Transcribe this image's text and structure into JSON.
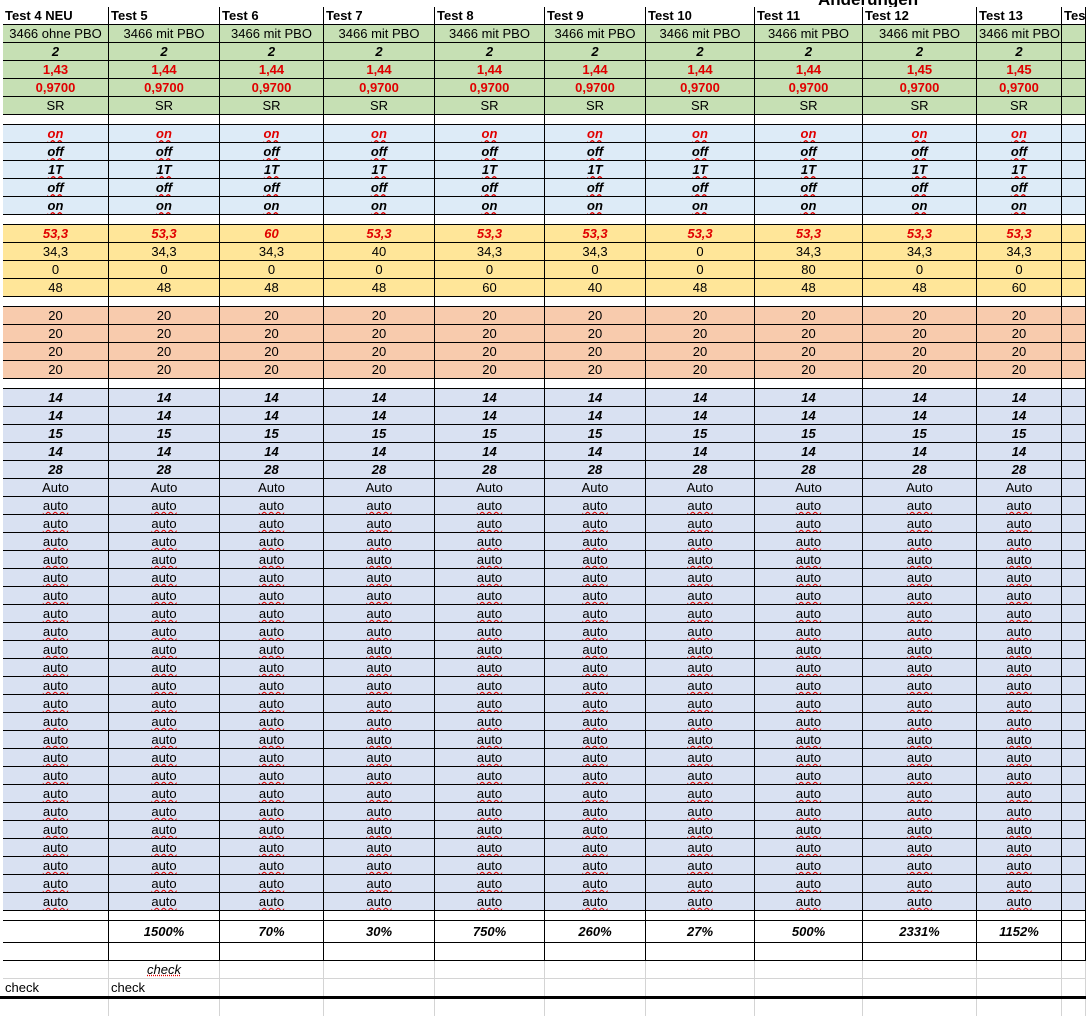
{
  "note": "Änderungen",
  "columns": [
    "Test 4 NEU",
    "Test 5",
    "Test 6",
    "Test 7",
    "Test 8",
    "Test 9",
    "Test 10",
    "Test 11",
    "Test 12",
    "Test 13",
    "Tes"
  ],
  "sections": [
    {
      "rows": [
        [
          "3466 ohne PBO",
          "3466 mit PBO",
          "3466 mit PBO",
          "3466 mit PBO",
          "3466 mit PBO",
          "3466 mit PBO",
          "3466 mit PBO",
          "3466 mit PBO",
          "3466 mit PBO",
          "3466 mit PBO"
        ],
        [
          "2",
          "2",
          "2",
          "2",
          "2",
          "2",
          "2",
          "2",
          "2",
          "2"
        ],
        [
          "1,43",
          "1,44",
          "1,44",
          "1,44",
          "1,44",
          "1,44",
          "1,44",
          "1,44",
          "1,45",
          "1,45"
        ],
        [
          "0,9700",
          "0,9700",
          "0,9700",
          "0,9700",
          "0,9700",
          "0,9700",
          "0,9700",
          "0,9700",
          "0,9700",
          "0,9700"
        ],
        [
          "SR",
          "SR",
          "SR",
          "SR",
          "SR",
          "SR",
          "SR",
          "SR",
          "SR",
          "SR"
        ]
      ]
    },
    {
      "rows": [
        [
          "on",
          "on",
          "on",
          "on",
          "on",
          "on",
          "on",
          "on",
          "on",
          "on"
        ],
        [
          "off",
          "off",
          "off",
          "off",
          "off",
          "off",
          "off",
          "off",
          "off",
          "off"
        ],
        [
          "1T",
          "1T",
          "1T",
          "1T",
          "1T",
          "1T",
          "1T",
          "1T",
          "1T",
          "1T"
        ],
        [
          "off",
          "off",
          "off",
          "off",
          "off",
          "off",
          "off",
          "off",
          "off",
          "off"
        ],
        [
          "on",
          "on",
          "on",
          "on",
          "on",
          "on",
          "on",
          "on",
          "on",
          "on"
        ]
      ]
    },
    {
      "rows": [
        [
          "53,3",
          "53,3",
          "60",
          "53,3",
          "53,3",
          "53,3",
          "53,3",
          "53,3",
          "53,3",
          "53,3"
        ],
        [
          "34,3",
          "34,3",
          "34,3",
          "40",
          "34,3",
          "34,3",
          "0",
          "34,3",
          "34,3",
          "34,3"
        ],
        [
          "0",
          "0",
          "0",
          "0",
          "0",
          "0",
          "0",
          "80",
          "0",
          "0"
        ],
        [
          "48",
          "48",
          "48",
          "48",
          "60",
          "40",
          "48",
          "48",
          "48",
          "60"
        ]
      ]
    },
    {
      "rows": [
        [
          "20",
          "20",
          "20",
          "20",
          "20",
          "20",
          "20",
          "20",
          "20",
          "20"
        ],
        [
          "20",
          "20",
          "20",
          "20",
          "20",
          "20",
          "20",
          "20",
          "20",
          "20"
        ],
        [
          "20",
          "20",
          "20",
          "20",
          "20",
          "20",
          "20",
          "20",
          "20",
          "20"
        ],
        [
          "20",
          "20",
          "20",
          "20",
          "20",
          "20",
          "20",
          "20",
          "20",
          "20"
        ]
      ]
    },
    {
      "rows": [
        [
          "14",
          "14",
          "14",
          "14",
          "14",
          "14",
          "14",
          "14",
          "14",
          "14"
        ],
        [
          "14",
          "14",
          "14",
          "14",
          "14",
          "14",
          "14",
          "14",
          "14",
          "14"
        ],
        [
          "15",
          "15",
          "15",
          "15",
          "15",
          "15",
          "15",
          "15",
          "15",
          "15"
        ],
        [
          "14",
          "14",
          "14",
          "14",
          "14",
          "14",
          "14",
          "14",
          "14",
          "14"
        ],
        [
          "28",
          "28",
          "28",
          "28",
          "28",
          "28",
          "28",
          "28",
          "28",
          "28"
        ],
        [
          "Auto",
          "Auto",
          "Auto",
          "Auto",
          "Auto",
          "Auto",
          "Auto",
          "Auto",
          "Auto",
          "Auto"
        ],
        [
          "auto",
          "auto",
          "auto",
          "auto",
          "auto",
          "auto",
          "auto",
          "auto",
          "auto",
          "auto"
        ],
        [
          "auto",
          "auto",
          "auto",
          "auto",
          "auto",
          "auto",
          "auto",
          "auto",
          "auto",
          "auto"
        ],
        [
          "auto",
          "auto",
          "auto",
          "auto",
          "auto",
          "auto",
          "auto",
          "auto",
          "auto",
          "auto"
        ],
        [
          "auto",
          "auto",
          "auto",
          "auto",
          "auto",
          "auto",
          "auto",
          "auto",
          "auto",
          "auto"
        ],
        [
          "auto",
          "auto",
          "auto",
          "auto",
          "auto",
          "auto",
          "auto",
          "auto",
          "auto",
          "auto"
        ],
        [
          "auto",
          "auto",
          "auto",
          "auto",
          "auto",
          "auto",
          "auto",
          "auto",
          "auto",
          "auto"
        ],
        [
          "auto",
          "auto",
          "auto",
          "auto",
          "auto",
          "auto",
          "auto",
          "auto",
          "auto",
          "auto"
        ],
        [
          "auto",
          "auto",
          "auto",
          "auto",
          "auto",
          "auto",
          "auto",
          "auto",
          "auto",
          "auto"
        ],
        [
          "auto",
          "auto",
          "auto",
          "auto",
          "auto",
          "auto",
          "auto",
          "auto",
          "auto",
          "auto"
        ],
        [
          "auto",
          "auto",
          "auto",
          "auto",
          "auto",
          "auto",
          "auto",
          "auto",
          "auto",
          "auto"
        ],
        [
          "auto",
          "auto",
          "auto",
          "auto",
          "auto",
          "auto",
          "auto",
          "auto",
          "auto",
          "auto"
        ],
        [
          "auto",
          "auto",
          "auto",
          "auto",
          "auto",
          "auto",
          "auto",
          "auto",
          "auto",
          "auto"
        ],
        [
          "auto",
          "auto",
          "auto",
          "auto",
          "auto",
          "auto",
          "auto",
          "auto",
          "auto",
          "auto"
        ],
        [
          "auto",
          "auto",
          "auto",
          "auto",
          "auto",
          "auto",
          "auto",
          "auto",
          "auto",
          "auto"
        ],
        [
          "auto",
          "auto",
          "auto",
          "auto",
          "auto",
          "auto",
          "auto",
          "auto",
          "auto",
          "auto"
        ],
        [
          "auto",
          "auto",
          "auto",
          "auto",
          "auto",
          "auto",
          "auto",
          "auto",
          "auto",
          "auto"
        ],
        [
          "auto",
          "auto",
          "auto",
          "auto",
          "auto",
          "auto",
          "auto",
          "auto",
          "auto",
          "auto"
        ],
        [
          "auto",
          "auto",
          "auto",
          "auto",
          "auto",
          "auto",
          "auto",
          "auto",
          "auto",
          "auto"
        ],
        [
          "auto",
          "auto",
          "auto",
          "auto",
          "auto",
          "auto",
          "auto",
          "auto",
          "auto",
          "auto"
        ],
        [
          "auto",
          "auto",
          "auto",
          "auto",
          "auto",
          "auto",
          "auto",
          "auto",
          "auto",
          "auto"
        ],
        [
          "auto",
          "auto",
          "auto",
          "auto",
          "auto",
          "auto",
          "auto",
          "auto",
          "auto",
          "auto"
        ],
        [
          "auto",
          "auto",
          "auto",
          "auto",
          "auto",
          "auto",
          "auto",
          "auto",
          "auto",
          "auto"
        ],
        [
          "auto",
          "auto",
          "auto",
          "auto",
          "auto",
          "auto",
          "auto",
          "auto",
          "auto",
          "auto"
        ]
      ]
    }
  ],
  "results": [
    "1500%",
    "70%",
    "30%",
    "750%",
    "260%",
    "27%",
    "500%",
    "2331%",
    "1152%"
  ],
  "checks": [
    [
      "check"
    ],
    [
      "check",
      "check"
    ]
  ]
}
